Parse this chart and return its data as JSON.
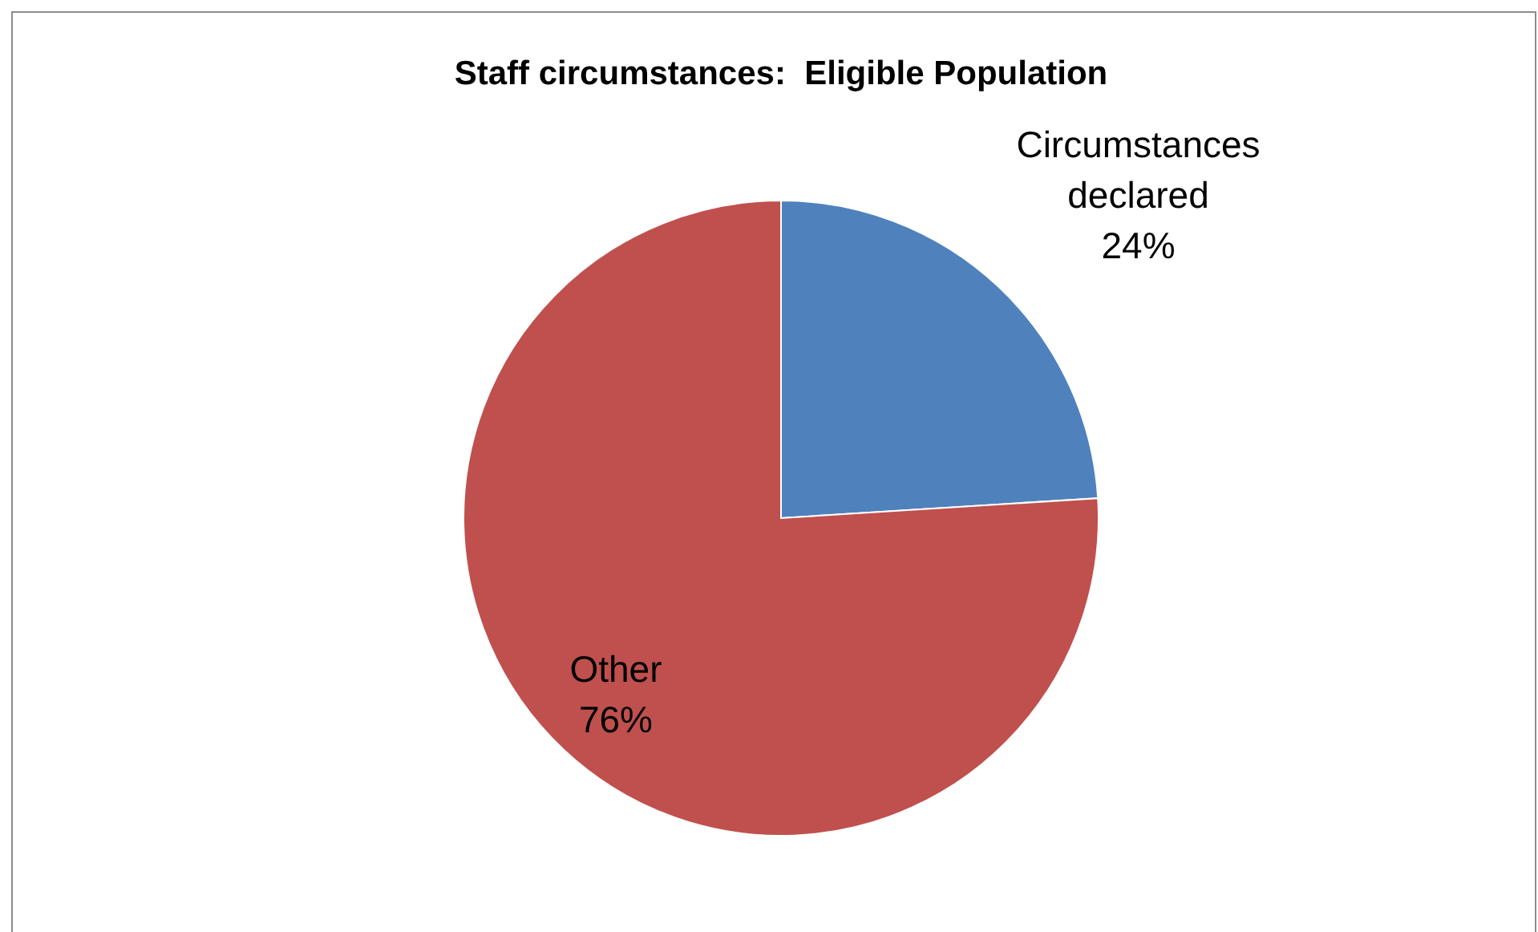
{
  "chart_data": {
    "type": "pie",
    "title": "Staff circumstances:  Eligible Population",
    "categories": [
      "Circumstances declared",
      "Other"
    ],
    "values": [
      24,
      76
    ],
    "colors": [
      "#4f81bd",
      "#c0504d"
    ],
    "value_labels": [
      "24%",
      "76%"
    ]
  }
}
